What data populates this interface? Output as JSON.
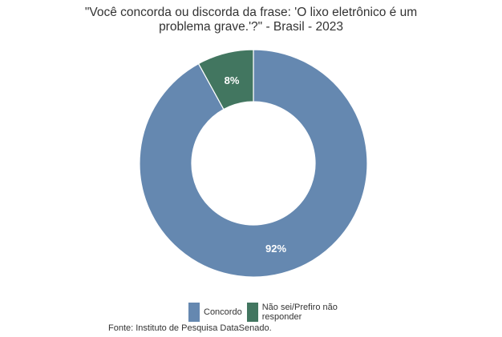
{
  "chart_data": {
    "type": "pie",
    "subtype": "donut",
    "title": "\"Você concorda ou discorda da frase: 'O lixo eletrônico é um problema grave.'?\" - Brasil - 2023",
    "title_lines": [
      "\"Você concorda ou discorda da frase: 'O lixo eletrônico é um",
      "problema grave.'?\" - Brasil - 2023"
    ],
    "categories": [
      "Concordo",
      "Não sei/Prefiro não responder"
    ],
    "values": [
      92,
      8
    ],
    "labels": [
      "92%",
      "8%"
    ],
    "colors": [
      "#6588b0",
      "#427660"
    ],
    "legend_position": "bottom",
    "source": "Fonte: Instituto de Pesquisa DataSenado."
  },
  "legend": {
    "items": [
      {
        "label": "Concordo",
        "color": "#6588b0"
      },
      {
        "label": "Não sei/Prefiro não responder",
        "color": "#427660"
      }
    ]
  }
}
